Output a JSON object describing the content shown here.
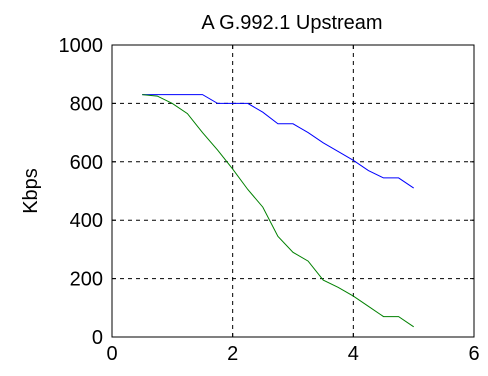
{
  "chart_data": {
    "type": "line",
    "title": "A G.992.1 Upstream",
    "xlabel": "",
    "ylabel": "Kbps",
    "xlim": [
      0,
      6
    ],
    "ylim": [
      0,
      1000
    ],
    "xticks": [
      0,
      2,
      4,
      6
    ],
    "yticks": [
      0,
      200,
      400,
      600,
      800,
      1000
    ],
    "grid": true,
    "legend": "none",
    "series": [
      {
        "color": "#0000ff",
        "x": [
          0.5,
          0.75,
          1.0,
          1.25,
          1.5,
          1.75,
          2.0,
          2.25,
          2.5,
          2.75,
          3.0,
          3.25,
          3.5,
          3.75,
          4.0,
          4.25,
          4.5,
          4.75,
          5.0
        ],
        "y": [
          830,
          830,
          830,
          830,
          830,
          800,
          800,
          800,
          770,
          730,
          730,
          700,
          665,
          635,
          605,
          570,
          545,
          545,
          510
        ]
      },
      {
        "color": "#008000",
        "x": [
          0.5,
          0.75,
          1.0,
          1.25,
          1.5,
          1.75,
          2.0,
          2.25,
          2.5,
          2.75,
          3.0,
          3.25,
          3.5,
          3.75,
          4.0,
          4.25,
          4.5,
          4.75,
          5.0
        ],
        "y": [
          830,
          825,
          800,
          765,
          700,
          640,
          575,
          505,
          445,
          345,
          290,
          260,
          195,
          170,
          140,
          105,
          70,
          70,
          35
        ]
      }
    ]
  }
}
